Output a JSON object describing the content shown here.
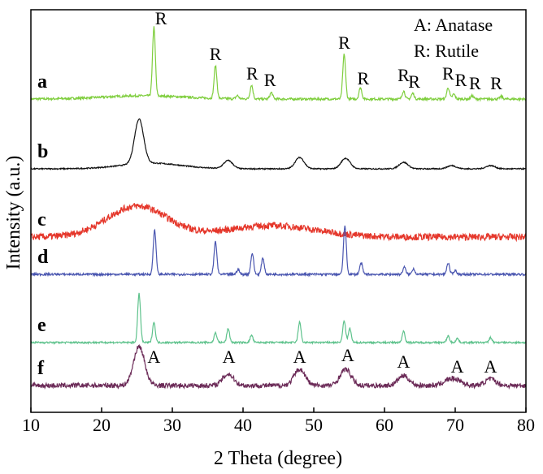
{
  "chart_data": {
    "type": "line",
    "xlabel": "2 Theta (degree)",
    "ylabel": "Intensity (a.u.)",
    "xlim": [
      10,
      80
    ],
    "x_ticks": [
      10,
      20,
      30,
      40,
      50,
      60,
      70,
      80
    ],
    "legend": {
      "placement": "top-right",
      "entries": [
        "A: Anatase",
        "R: Rutile"
      ]
    },
    "grid": false,
    "series": [
      {
        "name": "a",
        "color": "#7fce3e",
        "peaks": [
          {
            "x": 27.4,
            "h": 85
          },
          {
            "x": 36.1,
            "h": 40
          },
          {
            "x": 39.2,
            "h": 4
          },
          {
            "x": 41.2,
            "h": 17
          },
          {
            "x": 44.0,
            "h": 8
          },
          {
            "x": 54.3,
            "h": 55
          },
          {
            "x": 56.6,
            "h": 14
          },
          {
            "x": 62.7,
            "h": 10
          },
          {
            "x": 64.0,
            "h": 7
          },
          {
            "x": 69.0,
            "h": 14
          },
          {
            "x": 69.8,
            "h": 6
          },
          {
            "x": 72.4,
            "h": 4
          },
          {
            "x": 76.5,
            "h": 3
          }
        ]
      },
      {
        "name": "b",
        "color": "#111111",
        "peaks": [
          {
            "x": 25.3,
            "h": 55
          },
          {
            "x": 37.9,
            "h": 10
          },
          {
            "x": 48.0,
            "h": 14
          },
          {
            "x": 54.5,
            "h": 13
          },
          {
            "x": 62.7,
            "h": 8
          },
          {
            "x": 69.5,
            "h": 4
          },
          {
            "x": 75.0,
            "h": 4
          }
        ]
      },
      {
        "name": "c",
        "color": "#e5372b",
        "peaks": [
          {
            "x": 25.0,
            "h": 38
          },
          {
            "x": 44.0,
            "h": 14
          }
        ]
      },
      {
        "name": "d",
        "color": "#4a56b0",
        "peaks": [
          {
            "x": 27.5,
            "h": 55
          },
          {
            "x": 36.1,
            "h": 40
          },
          {
            "x": 39.3,
            "h": 6
          },
          {
            "x": 41.3,
            "h": 26
          },
          {
            "x": 42.8,
            "h": 20
          },
          {
            "x": 54.4,
            "h": 60
          },
          {
            "x": 56.7,
            "h": 14
          },
          {
            "x": 62.8,
            "h": 9
          },
          {
            "x": 64.1,
            "h": 7
          },
          {
            "x": 69.0,
            "h": 14
          },
          {
            "x": 70.0,
            "h": 5
          }
        ]
      },
      {
        "name": "e",
        "color": "#5ec28c",
        "peaks": [
          {
            "x": 25.3,
            "h": 60
          },
          {
            "x": 27.4,
            "h": 25
          },
          {
            "x": 36.1,
            "h": 12
          },
          {
            "x": 37.9,
            "h": 17
          },
          {
            "x": 41.2,
            "h": 9
          },
          {
            "x": 48.0,
            "h": 25
          },
          {
            "x": 54.3,
            "h": 27
          },
          {
            "x": 55.1,
            "h": 17
          },
          {
            "x": 62.7,
            "h": 14
          },
          {
            "x": 69.0,
            "h": 8
          },
          {
            "x": 70.3,
            "h": 5
          },
          {
            "x": 75.0,
            "h": 6
          }
        ]
      },
      {
        "name": "f",
        "color": "#6b2a57",
        "peaks": [
          {
            "x": 25.3,
            "h": 48
          },
          {
            "x": 37.9,
            "h": 14
          },
          {
            "x": 48.0,
            "h": 20
          },
          {
            "x": 54.5,
            "h": 20
          },
          {
            "x": 62.7,
            "h": 12
          },
          {
            "x": 69.0,
            "h": 6
          },
          {
            "x": 70.3,
            "h": 6
          },
          {
            "x": 75.0,
            "h": 8
          }
        ]
      }
    ],
    "peak_annotations": [
      {
        "text": "R",
        "x": 28.4,
        "series": "a",
        "offset": 92
      },
      {
        "text": "R",
        "x": 36.1,
        "series": "a",
        "offset": 48
      },
      {
        "text": "R",
        "x": 41.3,
        "series": "a",
        "offset": 24
      },
      {
        "text": "R",
        "x": 43.8,
        "series": "a",
        "offset": 16
      },
      {
        "text": "R",
        "x": 54.3,
        "series": "a",
        "offset": 62
      },
      {
        "text": "R",
        "x": 57.0,
        "series": "a",
        "offset": 18
      },
      {
        "text": "R",
        "x": 62.7,
        "series": "a",
        "offset": 22
      },
      {
        "text": "R",
        "x": 64.2,
        "series": "a",
        "offset": 14
      },
      {
        "text": "R",
        "x": 69.0,
        "series": "a",
        "offset": 24
      },
      {
        "text": "R",
        "x": 70.8,
        "series": "a",
        "offset": 16
      },
      {
        "text": "R",
        "x": 72.8,
        "series": "a",
        "offset": 12
      },
      {
        "text": "R",
        "x": 75.8,
        "series": "a",
        "offset": 12
      },
      {
        "text": "A",
        "x": 27.4,
        "series": "f",
        "offset": 28
      },
      {
        "text": "A",
        "x": 38.0,
        "series": "f",
        "offset": 28
      },
      {
        "text": "A",
        "x": 48.0,
        "series": "f",
        "offset": 28
      },
      {
        "text": "A",
        "x": 54.8,
        "series": "f",
        "offset": 30
      },
      {
        "text": "A",
        "x": 62.7,
        "series": "f",
        "offset": 22
      },
      {
        "text": "A",
        "x": 70.3,
        "series": "f",
        "offset": 16
      },
      {
        "text": "A",
        "x": 75.0,
        "series": "f",
        "offset": 16
      }
    ]
  }
}
